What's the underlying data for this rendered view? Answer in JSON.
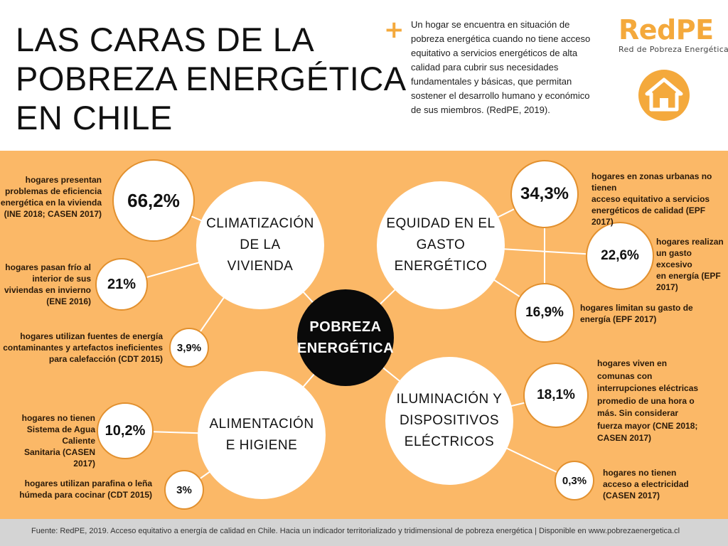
{
  "header": {
    "title_lines": [
      "LAS CARAS DE LA",
      "POBREZA ENERGÉTICA",
      "EN CHILE"
    ],
    "plus": "+",
    "definition": "Un hogar se encuentra en situación de pobreza energética cuando no tiene acceso equitativo a servicios energéticos de alta calidad para cubrir sus necesidades fundamentales y básicas, que permitan sostener el desarrollo humano y económico de sus miembros. (RedPE, 2019).",
    "logo": "RedPE",
    "logo_subtitle": "Red de Pobreza Energética",
    "house_icon": "house-icon"
  },
  "center": {
    "label_line1": "POBREZA",
    "label_line2": "ENERGÉTICA"
  },
  "dimensions": {
    "climatizacion": [
      "CLIMATIZACIÓN",
      "DE LA",
      "VIVIENDA"
    ],
    "equidad": [
      "EQUIDAD EN EL",
      "GASTO",
      "ENERGÉTICO"
    ],
    "alimentacion": [
      "ALIMENTACIÓN",
      "E HIGIENE"
    ],
    "iluminacion": [
      "ILUMINACIÓN Y",
      "DISPOSITIVOS",
      "ELÉCTRICOS"
    ]
  },
  "stats": {
    "s662": {
      "value": "66,2%",
      "note_lines": [
        "hogares presentan",
        "problemas de eficiencia",
        "energética en la vivienda",
        "(INE 2018; CASEN 2017)"
      ]
    },
    "s21": {
      "value": "21%",
      "note_lines": [
        "hogares pasan frío al",
        "interior de sus",
        "viviendas en invierno",
        "(ENE 2016)"
      ]
    },
    "s39": {
      "value": "3,9%",
      "note_lines": [
        "hogares utilizan fuentes de energía",
        "contaminantes y artefactos ineficientes",
        "para calefacción (CDT 2015)"
      ]
    },
    "s102": {
      "value": "10,2%",
      "note_lines": [
        "hogares no tienen",
        "Sistema de Agua Caliente",
        "Sanitaria (CASEN 2017)"
      ]
    },
    "s3": {
      "value": "3%",
      "note_lines": [
        "hogares utilizan parafina o leña",
        "húmeda para cocinar (CDT 2015)"
      ]
    },
    "s343": {
      "value": "34,3%",
      "note_lines": [
        "hogares en zonas urbanas no tienen",
        "acceso equitativo a servicios",
        "energéticos de calidad (EPF 2017)"
      ]
    },
    "s226": {
      "value": "22,6%",
      "note_lines": [
        "hogares realizan",
        "un gasto excesivo",
        "en energía (EPF",
        "2017)"
      ]
    },
    "s169": {
      "value": "16,9%",
      "note_lines": [
        "hogares limitan su gasto de",
        "energía (EPF 2017)"
      ]
    },
    "s181": {
      "value": "18,1%",
      "note_lines": [
        "hogares viven en",
        "comunas con",
        "interrupciones eléctricas",
        "promedio de una hora o",
        "más. Sin considerar",
        "fuerza mayor (CNE 2018;",
        "CASEN 2017)"
      ]
    },
    "s03": {
      "value": "0,3%",
      "note_lines": [
        "hogares no tienen",
        "acceso a electricidad",
        "(CASEN 2017)"
      ]
    }
  },
  "footer": {
    "text": "Fuente: RedPE, 2019. Acceso equitativo a energía de calidad en Chile. Hacia un indicador territorializado y tridimensional de pobreza energética |  Disponible en www.pobrezaenergetica.cl"
  },
  "colors": {
    "accent": "#f4a93c",
    "panel": "#fbb867",
    "stat_border": "#e2902e",
    "center": "#0a0a0a"
  }
}
